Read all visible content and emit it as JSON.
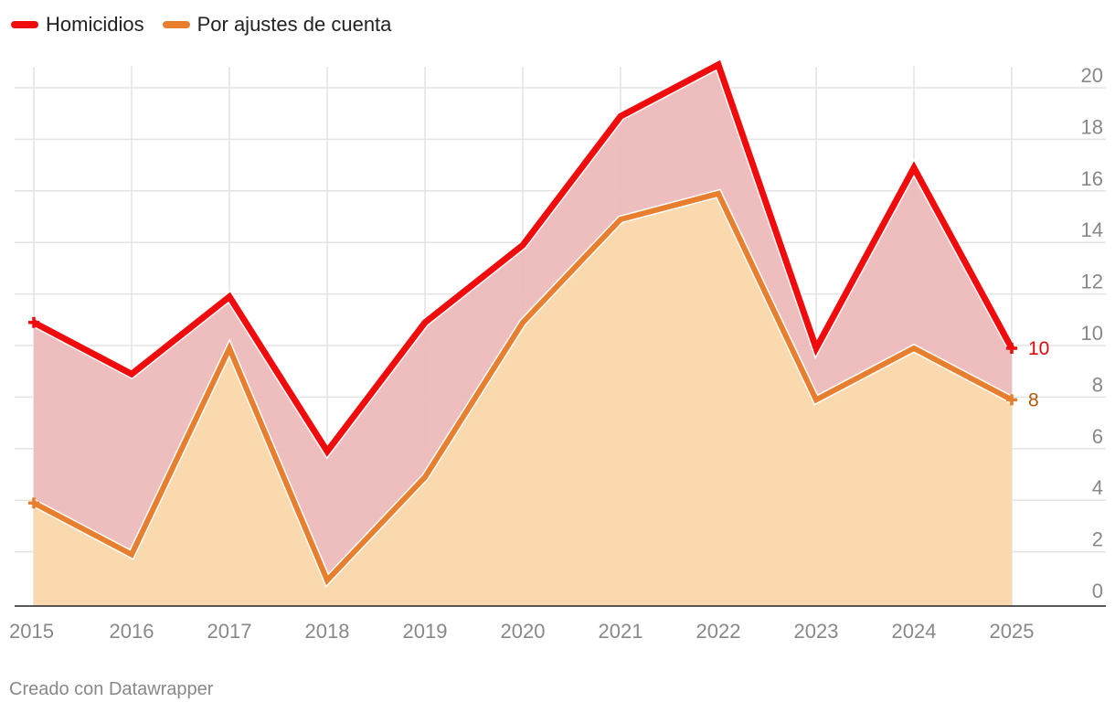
{
  "colors": {
    "homicidios": "#f00c0c",
    "ajustes": "#e87f2f",
    "homicidios_fill": "#edb9ba",
    "ajustes_fill": "#fbd9ae",
    "grid": "#e3e3e3",
    "axis": "#222222",
    "tick_text": "#888888",
    "label_homicidios": "#e00808",
    "label_ajustes": "#b05a0a"
  },
  "legend": [
    {
      "label": "Homicidios",
      "color_key": "homicidios"
    },
    {
      "label": "Por ajustes de cuenta",
      "color_key": "ajustes"
    }
  ],
  "footer": {
    "credit": "Creado con Datawrapper"
  },
  "chart_data": {
    "type": "area",
    "title": "",
    "xlabel": "",
    "ylabel": "",
    "x": [
      2015,
      2016,
      2017,
      2018,
      2019,
      2020,
      2021,
      2022,
      2023,
      2024,
      2025
    ],
    "x_tick_labels": [
      "2015",
      "2016",
      "2017",
      "2018",
      "2019",
      "2020",
      "2021",
      "2022",
      "2023",
      "2024",
      "2025"
    ],
    "y_ticks": [
      0,
      2,
      4,
      6,
      8,
      10,
      12,
      14,
      16,
      18,
      20
    ],
    "y_tick_labels": [
      "0",
      "2",
      "4",
      "6",
      "8",
      "10",
      "12",
      "14",
      "16",
      "18",
      "20"
    ],
    "ylim": [
      0,
      21
    ],
    "y_axis_position": "right",
    "grid": true,
    "legend_position": "top-left",
    "series": [
      {
        "name": "Homicidios",
        "values": [
          11,
          9,
          12,
          6,
          11,
          14,
          19,
          21,
          10,
          17,
          10
        ],
        "end_label": "10"
      },
      {
        "name": "Por ajustes de cuenta",
        "values": [
          4,
          2,
          10,
          1,
          5,
          11,
          15,
          16,
          8,
          10,
          8
        ],
        "end_label": "8"
      }
    ]
  }
}
